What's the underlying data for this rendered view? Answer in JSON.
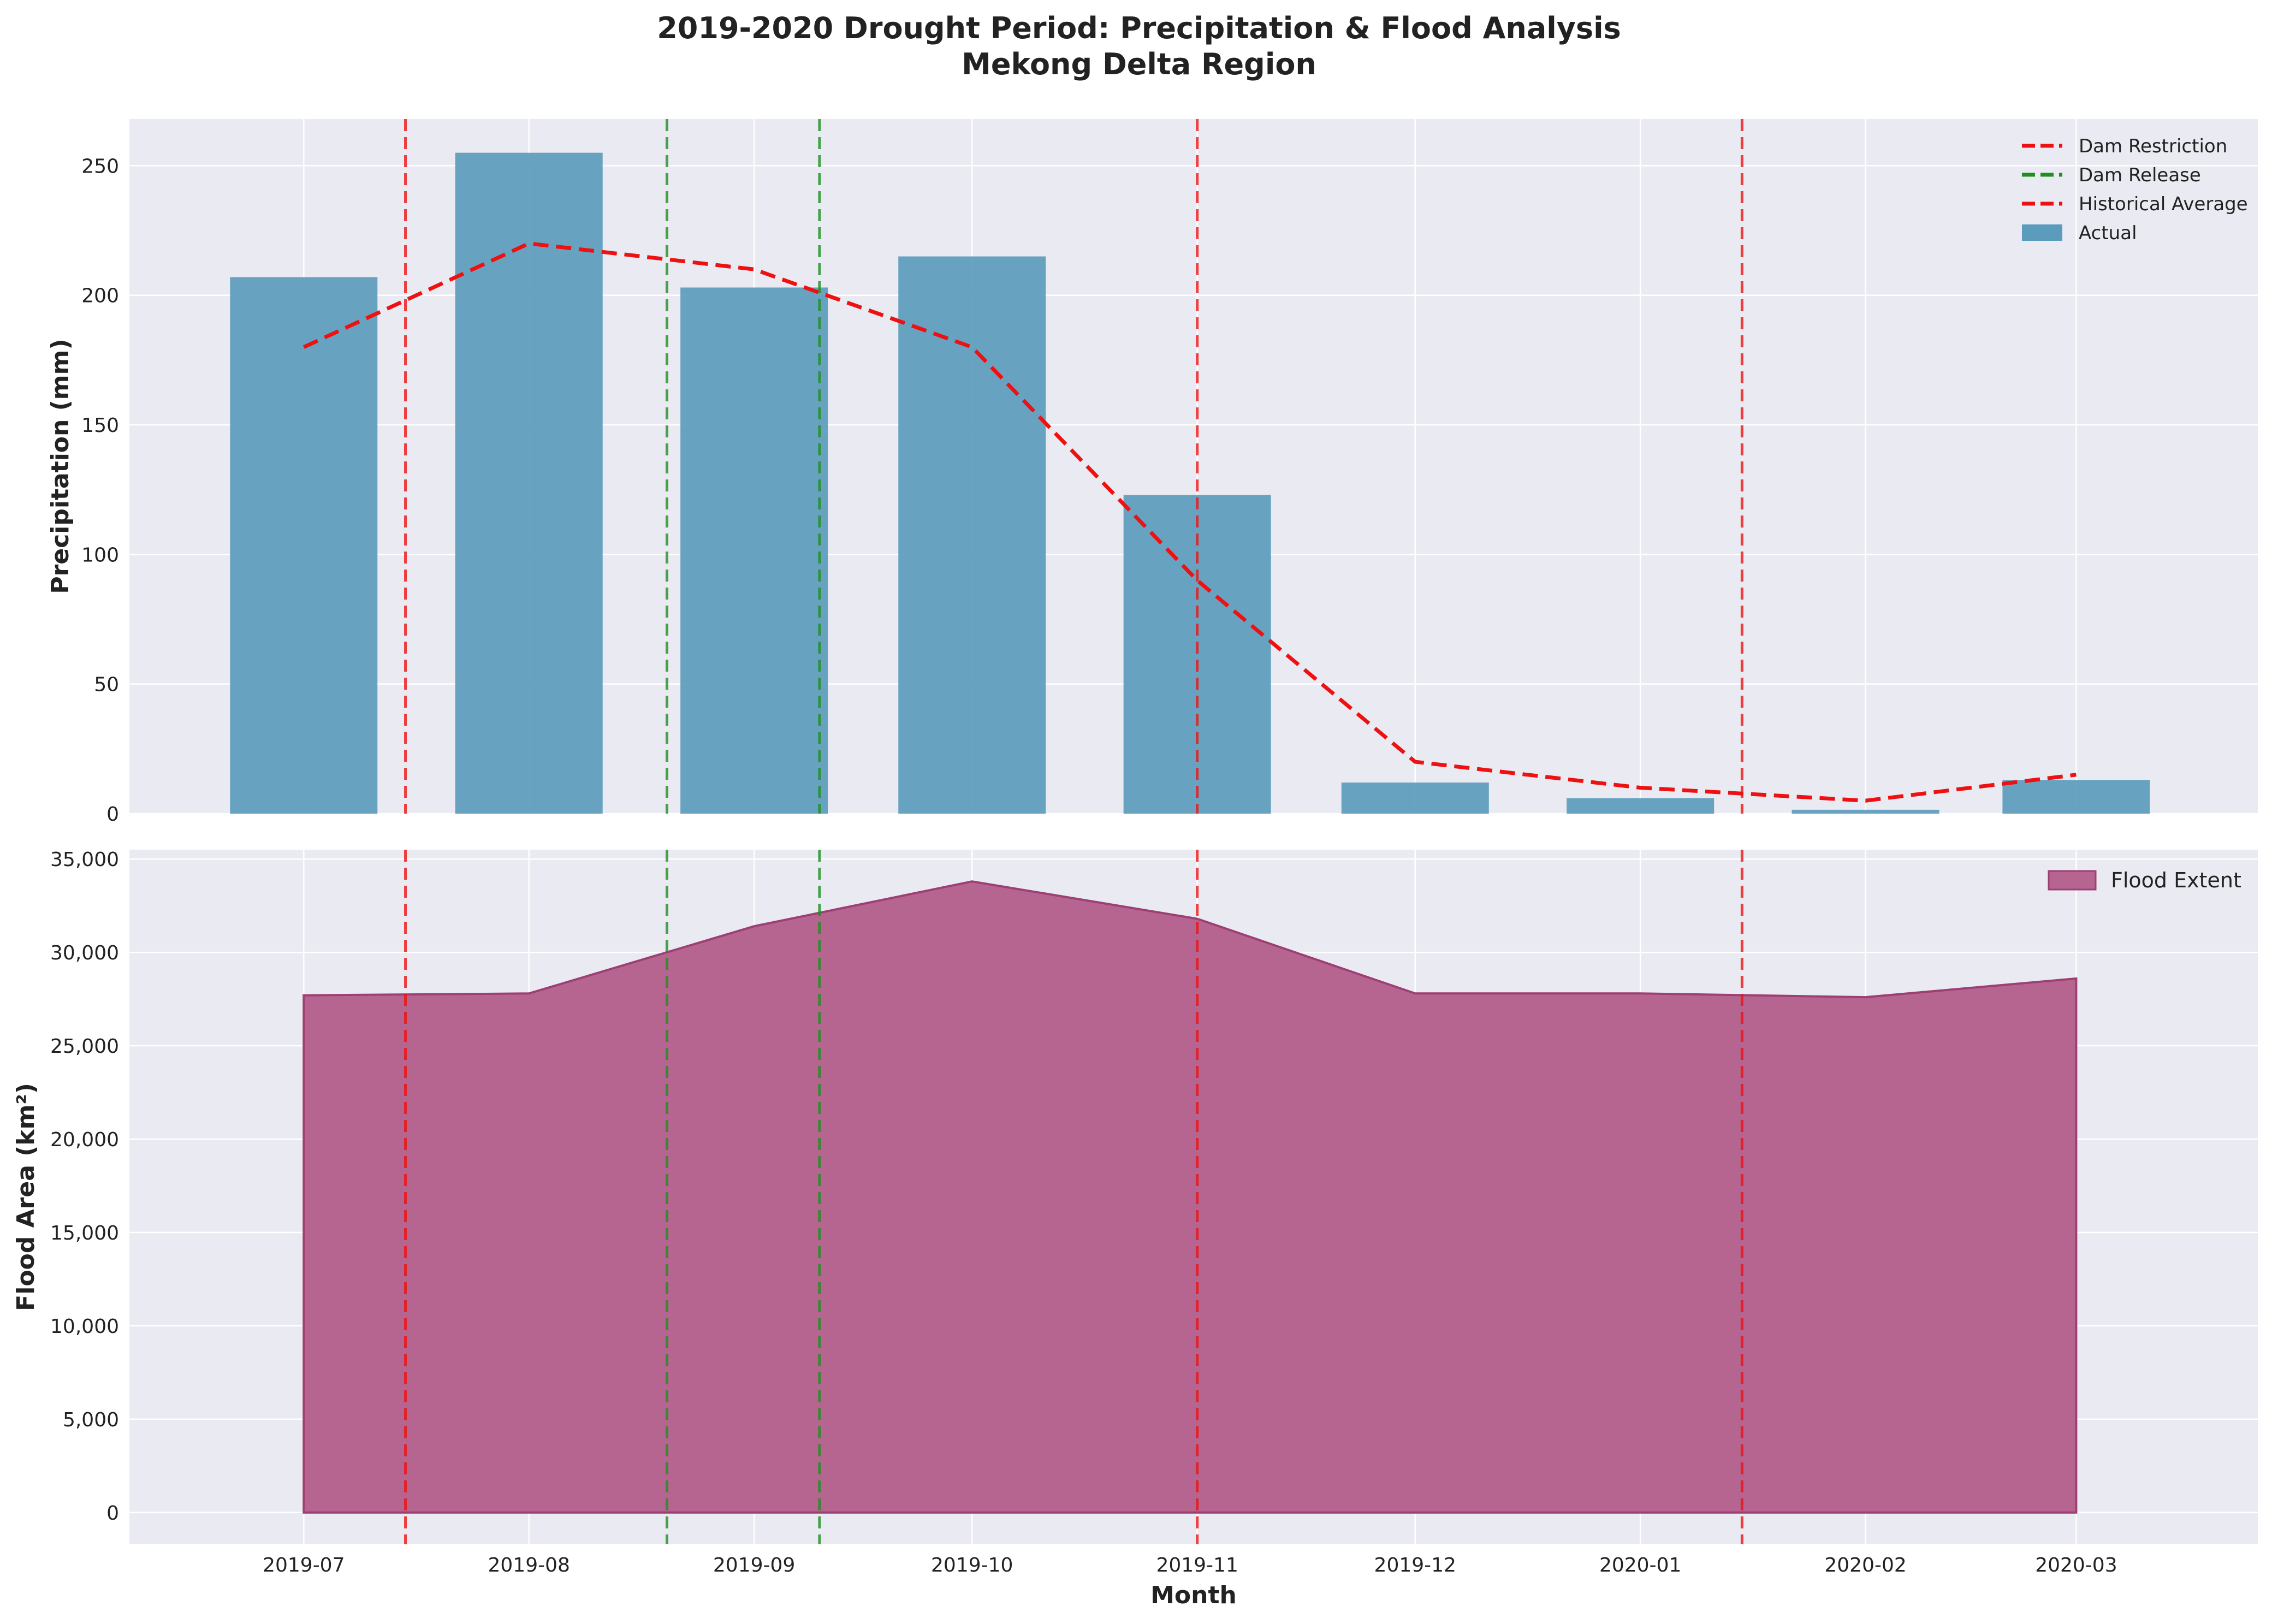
{
  "figure": {
    "title_line1": "2019-2020 Drought Period: Precipitation & Flood Analysis",
    "title_line2": "Mekong Delta Region",
    "xlabel": "Month"
  },
  "colors": {
    "bar": "#5b9cbd",
    "historical_line": "#ee1111",
    "dam_restriction": "#ee1111",
    "dam_release": "#1f8f1f",
    "flood_fill": "#b5658f",
    "flood_edge": "#9e3f73",
    "panel_bg": "#eaeaf2",
    "grid": "#ffffff"
  },
  "chart_data": [
    {
      "type": "bar",
      "ylabel": "Precipitation (mm)",
      "ylim": [
        0,
        268
      ],
      "yticks": [
        0,
        50,
        100,
        150,
        200,
        250
      ],
      "grid": true,
      "legend_position": "top-right",
      "series": [
        {
          "name": "Actual",
          "type": "bar",
          "x": [
            "2019-07-01",
            "2019-08-01",
            "2019-09-01",
            "2019-10-01",
            "2019-11-01",
            "2019-12-01",
            "2020-01-01",
            "2020-02-01",
            "2020-03-01"
          ],
          "values": [
            207,
            255,
            203,
            215,
            123,
            12,
            6,
            1.5,
            13
          ]
        },
        {
          "name": "Historical Average",
          "type": "line",
          "style": "dashed",
          "x": [
            "2019-07-01",
            "2019-08-01",
            "2019-09-01",
            "2019-10-01",
            "2019-11-01",
            "2019-12-01",
            "2020-01-01",
            "2020-02-01",
            "2020-03-01"
          ],
          "values": [
            180,
            220,
            210,
            180,
            90,
            20,
            10,
            5,
            15
          ]
        }
      ],
      "vlines": [
        {
          "name": "Dam Restriction",
          "date": "2019-07-15"
        },
        {
          "name": "Dam Restriction",
          "date": "2019-11-01"
        },
        {
          "name": "Dam Restriction",
          "date": "2020-01-15"
        },
        {
          "name": "Dam Release",
          "date": "2019-08-20"
        },
        {
          "name": "Dam Release",
          "date": "2019-09-10"
        }
      ],
      "legend": [
        "Dam Restriction",
        "Dam Release",
        "Historical Average",
        "Actual"
      ]
    },
    {
      "type": "area",
      "ylabel": "Flood Area (km²)",
      "xlabel": "Month",
      "ylim": [
        -1700,
        35500
      ],
      "yticks": [
        "0",
        "5,000",
        "10,000",
        "15,000",
        "20,000",
        "25,000",
        "30,000",
        "35,000"
      ],
      "grid": true,
      "legend_position": "top-right",
      "series": [
        {
          "name": "Flood Extent",
          "x": [
            "2019-07-01",
            "2019-08-01",
            "2019-09-01",
            "2019-10-01",
            "2019-11-01",
            "2019-12-01",
            "2020-01-01",
            "2020-02-01",
            "2020-03-01"
          ],
          "values": [
            27700,
            27800,
            31400,
            33800,
            31800,
            27800,
            27800,
            27600,
            28600
          ]
        }
      ],
      "legend": [
        "Flood Extent"
      ]
    }
  ],
  "xaxis": {
    "tick_labels": [
      "2019-07",
      "2019-08",
      "2019-09",
      "2019-10",
      "2019-11",
      "2019-12",
      "2020-01",
      "2020-02",
      "2020-03"
    ],
    "tick_dates": [
      "2019-07-01",
      "2019-08-01",
      "2019-09-01",
      "2019-10-01",
      "2019-11-01",
      "2019-12-01",
      "2020-01-01",
      "2020-02-01",
      "2020-03-01"
    ],
    "range": [
      "2019-06-07",
      "2020-03-26"
    ]
  }
}
